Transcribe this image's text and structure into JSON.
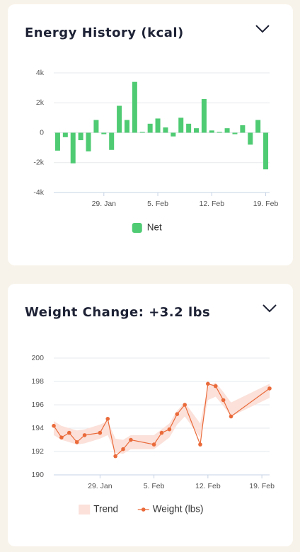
{
  "chart_data": [
    {
      "type": "bar",
      "title": "Energy History (kcal)",
      "categories": [
        null,
        null,
        null,
        null,
        null,
        null,
        "29. Jan",
        null,
        null,
        null,
        null,
        null,
        null,
        "5. Feb",
        null,
        null,
        null,
        null,
        null,
        null,
        "12. Feb",
        null,
        null,
        null,
        null,
        null,
        null,
        "19. Feb"
      ],
      "series": [
        {
          "name": "Net",
          "color": "#4fcb73",
          "values": [
            -1200,
            -300,
            -2050,
            -500,
            -1250,
            850,
            -100,
            -1150,
            1800,
            850,
            3400,
            50,
            600,
            950,
            350,
            -250,
            1000,
            600,
            300,
            2250,
            150,
            50,
            300,
            -100,
            500,
            -800,
            850,
            -2450
          ]
        }
      ],
      "ylim": [
        -4000,
        4000
      ],
      "yticks": [
        {
          "value": -4000,
          "label": "-4k"
        },
        {
          "value": -2000,
          "label": "-2k"
        },
        0,
        {
          "value": 2000,
          "label": "2k"
        },
        {
          "value": 4000,
          "label": "4k"
        }
      ],
      "grid": true
    },
    {
      "type": "line",
      "title": "Weight Change: +3.2 lbs",
      "x": [
        23,
        24,
        25,
        26,
        27,
        29,
        30,
        31,
        32,
        33,
        36,
        37,
        38,
        39,
        40,
        42,
        43,
        44,
        45,
        46,
        51
      ],
      "series": [
        {
          "name": "Trend",
          "type": "area",
          "color": "#fbe1da",
          "values": [
            194.0,
            193.6,
            193.4,
            193.2,
            193.3,
            193.7,
            194.0,
            192.5,
            192.4,
            192.8,
            192.8,
            193.3,
            193.8,
            194.9,
            195.6,
            193.8,
            197.0,
            197.3,
            196.5,
            195.6,
            197.2
          ]
        },
        {
          "name": "Weight (lbs)",
          "type": "line",
          "color": "#ea6a3a",
          "values": [
            194.2,
            193.2,
            193.6,
            192.8,
            193.4,
            193.6,
            194.8,
            191.6,
            192.2,
            193.0,
            192.6,
            193.6,
            193.9,
            195.2,
            196.0,
            192.6,
            197.8,
            197.6,
            196.4,
            195.0,
            197.4
          ]
        }
      ],
      "xlim": [
        23,
        51
      ],
      "xticks": [
        {
          "value": 29,
          "label": "29. Jan"
        },
        {
          "value": 36,
          "label": "5. Feb"
        },
        {
          "value": 43,
          "label": "12. Feb"
        },
        {
          "value": 50,
          "label": "19. Feb"
        }
      ],
      "ylim": [
        190,
        200
      ],
      "yticks": [
        190,
        192,
        194,
        196,
        198,
        200
      ],
      "grid": true
    }
  ]
}
